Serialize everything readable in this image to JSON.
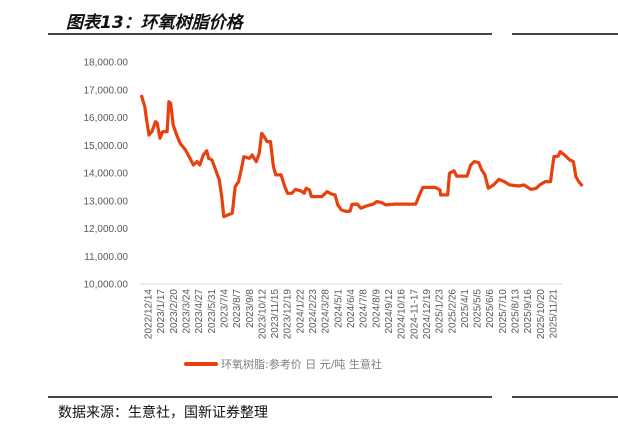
{
  "title": "图表13：环氧树脂价格",
  "source": "数据来源：生意社，国新证券整理",
  "chart_data": {
    "type": "line",
    "title": "环氧树脂价格",
    "xlabel": "",
    "ylabel": "",
    "ylim": [
      10000,
      18000
    ],
    "y_ticks": [
      "10,000.00",
      "11,000.00",
      "12,000.00",
      "13,000.00",
      "14,000.00",
      "15,000.00",
      "16,000.00",
      "17,000.00",
      "18,000.00"
    ],
    "y_tick_values": [
      10000,
      11000,
      12000,
      13000,
      14000,
      15000,
      16000,
      17000,
      18000
    ],
    "categories": [
      "2022/12/14",
      "2023/1/17",
      "2023/2/20",
      "2023/3/24",
      "2023/4/27",
      "2023/5/31",
      "2023/7/4",
      "2023/8/7",
      "2023/9/8",
      "2023/10/12",
      "2023/11/15",
      "2023/12/19",
      "2024/1/22",
      "2024/2/23",
      "2024/3/28",
      "2024/5/1",
      "2024/6/4",
      "2024/7/8",
      "2024/8/9",
      "2024/9/12",
      "2024/10/16",
      "2024-11-17",
      "2024/12/19",
      "2025/1/23",
      "2025/2/26",
      "2025/4/1",
      "2025/5/5",
      "2025/6/6",
      "2025/7/10",
      "2025/8/13",
      "2025/9/16",
      "2025/10/20",
      "2025/11/21"
    ],
    "legend": "环氧树脂:参考价 日 元/吨 生意社",
    "legend_position": "bottom",
    "color": "#E8400F",
    "series": [
      {
        "name": "环氧树脂:参考价 日 元/吨 生意社",
        "x": [
          -0.53,
          -0.25,
          -0.11,
          0.08,
          0.31,
          0.59,
          0.73,
          0.95,
          1.15,
          1.51,
          1.65,
          1.79,
          1.99,
          2.27,
          2.54,
          2.96,
          3.25,
          3.59,
          3.86,
          4.09,
          4.37,
          4.64,
          4.79,
          5.06,
          5.35,
          5.63,
          5.82,
          5.99,
          6.32,
          6.66,
          6.89,
          7.16,
          7.39,
          7.58,
          8.0,
          8.23,
          8.56,
          8.79,
          8.98,
          9.17,
          9.4,
          9.68,
          9.91,
          10.1,
          10.52,
          10.81,
          11.02,
          11.36,
          11.65,
          12.07,
          12.34,
          12.49,
          12.76,
          12.91,
          13.74,
          14.16,
          14.44,
          14.78,
          15.0,
          15.28,
          15.7,
          15.98,
          16.12,
          16.54,
          16.82,
          17.24,
          17.8,
          18.08,
          18.5,
          18.78,
          19.48,
          21.16,
          21.44,
          21.72,
          22.7,
          23.07,
          23.12,
          23.68,
          23.82,
          24.18,
          24.38,
          25.21,
          25.5,
          25.78,
          26.14,
          26.34,
          26.62,
          26.89,
          27.31,
          27.73,
          28.15,
          28.57,
          29.28,
          29.7,
          30.25,
          30.67,
          30.96,
          31.38,
          31.8,
          32.07,
          32.41,
          32.58,
          32.91,
          33.33,
          33.61,
          33.81,
          34.03,
          34.32
        ],
        "values": [
          16810,
          16390,
          15910,
          15370,
          15490,
          15850,
          15800,
          15250,
          15490,
          15490,
          16570,
          16510,
          15730,
          15370,
          15070,
          14830,
          14590,
          14290,
          14410,
          14290,
          14650,
          14800,
          14530,
          14470,
          14110,
          13750,
          13150,
          12430,
          12490,
          12550,
          13510,
          13690,
          14170,
          14590,
          14530,
          14650,
          14410,
          14710,
          15430,
          15310,
          15130,
          15130,
          14230,
          13930,
          13930,
          13510,
          13270,
          13270,
          13410,
          13360,
          13270,
          13450,
          13390,
          13150,
          13150,
          13330,
          13250,
          13210,
          12850,
          12670,
          12610,
          12630,
          12870,
          12880,
          12730,
          12810,
          12880,
          12970,
          12930,
          12850,
          12880,
          12880,
          13210,
          13480,
          13480,
          13390,
          13210,
          13210,
          13990,
          14080,
          13890,
          13890,
          14290,
          14410,
          14370,
          14130,
          13930,
          13450,
          13570,
          13770,
          13690,
          13570,
          13530,
          13570,
          13410,
          13450,
          13570,
          13690,
          13690,
          14590,
          14610,
          14770,
          14650,
          14470,
          14410,
          13870,
          13690,
          13530
        ]
      }
    ]
  }
}
